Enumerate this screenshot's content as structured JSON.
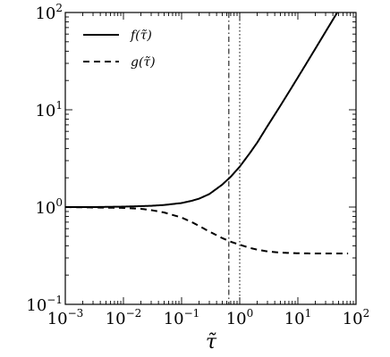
{
  "chart_data": {
    "type": "line",
    "xlabel": "τ̃",
    "ylabel": "",
    "xscale": "log",
    "yscale": "log",
    "xlim": [
      0.001,
      100
    ],
    "ylim": [
      0.1,
      100
    ],
    "grid": false,
    "legend": "top-left",
    "x_ticks": [
      {
        "base": "10",
        "exp": "−3",
        "value": 0.001
      },
      {
        "base": "10",
        "exp": "−2",
        "value": 0.01
      },
      {
        "base": "10",
        "exp": "−1",
        "value": 0.1
      },
      {
        "base": "10",
        "exp": "0",
        "value": 1
      },
      {
        "base": "10",
        "exp": "1",
        "value": 10
      },
      {
        "base": "10",
        "exp": "2",
        "value": 100
      }
    ],
    "y_ticks": [
      {
        "base": "10",
        "exp": "−1",
        "value": 0.1
      },
      {
        "base": "10",
        "exp": "0",
        "value": 1
      },
      {
        "base": "10",
        "exp": "1",
        "value": 10
      },
      {
        "base": "10",
        "exp": "2",
        "value": 100
      }
    ],
    "series": [
      {
        "name": "f(τ̃)",
        "style": "solid",
        "color": "#000000",
        "x": [
          0.001,
          0.003,
          0.01,
          0.03,
          0.05,
          0.1,
          0.15,
          0.2,
          0.3,
          0.5,
          0.7,
          1,
          1.5,
          2,
          3,
          5,
          7,
          10,
          15,
          20,
          30,
          50,
          73
        ],
        "y": [
          1.0,
          1.0,
          1.01,
          1.03,
          1.05,
          1.1,
          1.16,
          1.22,
          1.36,
          1.7,
          2.05,
          2.6,
          3.6,
          4.6,
          6.8,
          11.0,
          15.2,
          21.5,
          32.0,
          42.5,
          63.5,
          105,
          150
        ]
      },
      {
        "name": "g(τ̃)",
        "style": "dashed",
        "color": "#000000",
        "x": [
          0.001,
          0.003,
          0.01,
          0.02,
          0.03,
          0.05,
          0.1,
          0.15,
          0.2,
          0.3,
          0.5,
          0.7,
          1,
          1.5,
          2,
          3,
          5,
          10,
          20,
          50,
          73
        ],
        "y": [
          1.0,
          0.99,
          0.98,
          0.96,
          0.93,
          0.88,
          0.78,
          0.7,
          0.64,
          0.56,
          0.48,
          0.44,
          0.41,
          0.38,
          0.365,
          0.35,
          0.34,
          0.335,
          0.333,
          0.333,
          0.333
        ]
      }
    ],
    "reference_lines": [
      {
        "axis": "x",
        "value": 0.65,
        "style": "dashdot",
        "color": "#000000"
      },
      {
        "axis": "x",
        "value": 1.0,
        "style": "dotted",
        "color": "#000000"
      }
    ]
  }
}
